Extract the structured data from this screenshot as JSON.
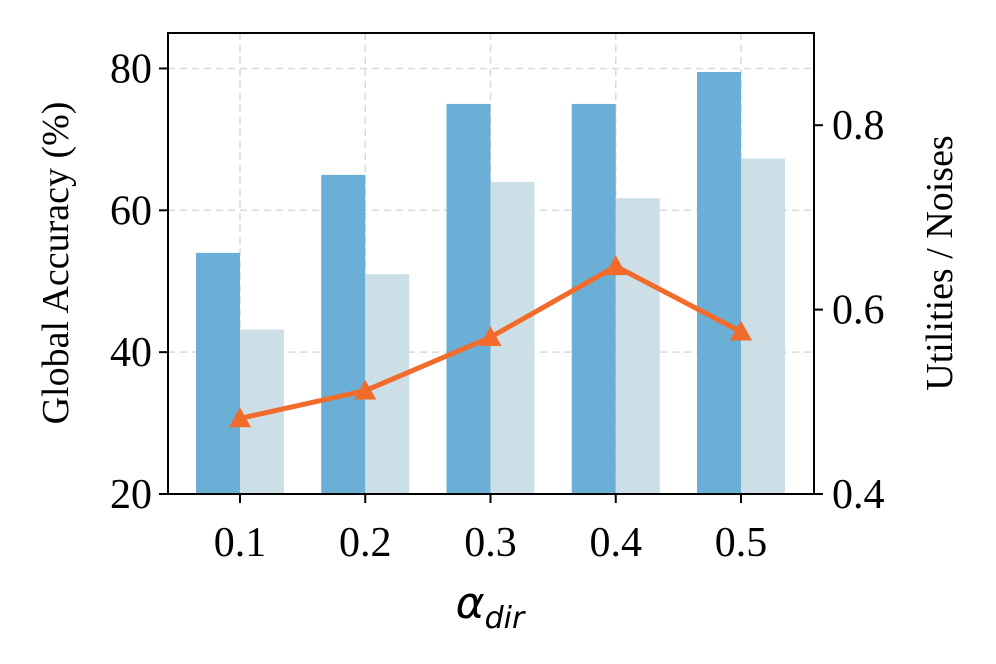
{
  "chart_data": {
    "type": "bar",
    "categories": [
      "0.1",
      "0.2",
      "0.3",
      "0.4",
      "0.5"
    ],
    "series": [
      {
        "axis": "left",
        "kind": "bar",
        "color": "#6baed6",
        "values": [
          54.0,
          65.0,
          75.0,
          75.0,
          79.5
        ]
      },
      {
        "axis": "left",
        "kind": "bar",
        "color": "#ccdfe7",
        "values": [
          43.2,
          51.0,
          64.0,
          61.7,
          67.3
        ]
      },
      {
        "axis": "right",
        "kind": "line",
        "marker": "triangle",
        "color": "#f26b2a",
        "values": [
          0.482,
          0.512,
          0.57,
          0.647,
          0.576
        ]
      }
    ],
    "xlabel": "α",
    "xlabel_subscript": "dir",
    "ylabel": "Global Accuracy (%)",
    "y2label": "Utilities / Noises",
    "ylim": [
      20,
      85
    ],
    "y2lim": [
      0.4,
      0.9
    ],
    "yticks": [
      "20",
      "40",
      "60",
      "80"
    ],
    "y2ticks": [
      "0.4",
      "0.6",
      "0.8"
    ],
    "grid": true
  }
}
